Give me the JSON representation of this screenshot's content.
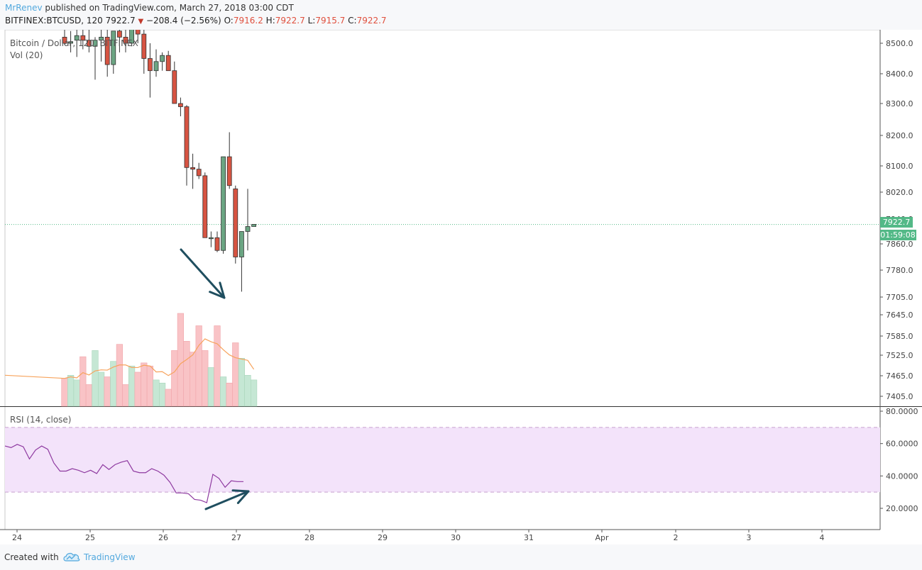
{
  "header": {
    "author": "MrRenev",
    "published": "published on TradingView.com, March 27, 2018 03:00 CDT",
    "symbol": "BITFINEX:BTCUSD, 120",
    "price": "7922.7",
    "change": "−208.4 (−2.56%)",
    "o_label": "O:",
    "o": "7916.2",
    "h_label": "H:",
    "h": "7922.7",
    "l_label": "L:",
    "l": "7915.7",
    "c_label": "C:",
    "c": "7922.7"
  },
  "footer": {
    "created_with": "Created with",
    "brand": "TradingView"
  },
  "colors": {
    "up": "#53b987",
    "down": "#eb4d5c",
    "up_fill": "#6ba583",
    "down_fill": "#d75442",
    "rsi_band": "#f3e3fa",
    "rsi_line": "#8e3aa0",
    "vol_ma": "#f7a35c",
    "price_line": "#53b987",
    "arrow": "#1f4e5f"
  },
  "chart_data": [
    {
      "type": "candlestick",
      "title": "Bitcoin / Dollar, 120, BITFINEX",
      "volume_label": "Vol (20)",
      "current_price": "7922.7",
      "countdown": "01:59:08",
      "y_ticks": [
        "8500.0",
        "8400.0",
        "8300.0",
        "8200.0",
        "8100.0",
        "8020.0",
        "7940.0",
        "7860.0",
        "7780.0",
        "7705.0",
        "7645.0",
        "7585.0",
        "7525.0",
        "7465.0",
        "7405.0"
      ],
      "x_ticks": [
        "24",
        "25",
        "26",
        "27",
        "28",
        "29",
        "30",
        "31",
        "Apr",
        "2",
        "3",
        "4"
      ],
      "ylim": [
        7405,
        8500
      ],
      "candles": [
        {
          "o": 8520,
          "h": 8560,
          "l": 8495,
          "c": 8500
        },
        {
          "o": 8500,
          "h": 8540,
          "l": 8470,
          "c": 8505
        },
        {
          "o": 8510,
          "h": 8545,
          "l": 8455,
          "c": 8525
        },
        {
          "o": 8525,
          "h": 8560,
          "l": 8480,
          "c": 8510
        },
        {
          "o": 8510,
          "h": 8550,
          "l": 8470,
          "c": 8490
        },
        {
          "o": 8490,
          "h": 8520,
          "l": 8380,
          "c": 8510
        },
        {
          "o": 8510,
          "h": 8560,
          "l": 8440,
          "c": 8520
        },
        {
          "o": 8520,
          "h": 8560,
          "l": 8390,
          "c": 8430
        },
        {
          "o": 8430,
          "h": 8540,
          "l": 8400,
          "c": 8540
        },
        {
          "o": 8540,
          "h": 8570,
          "l": 8470,
          "c": 8520
        },
        {
          "o": 8520,
          "h": 8560,
          "l": 8470,
          "c": 8500
        },
        {
          "o": 8500,
          "h": 8560,
          "l": 8490,
          "c": 8550
        },
        {
          "o": 8550,
          "h": 8570,
          "l": 8500,
          "c": 8530
        },
        {
          "o": 8530,
          "h": 8560,
          "l": 8400,
          "c": 8450
        },
        {
          "o": 8450,
          "h": 8500,
          "l": 8320,
          "c": 8410
        },
        {
          "o": 8410,
          "h": 8480,
          "l": 8390,
          "c": 8440
        },
        {
          "o": 8440,
          "h": 8470,
          "l": 8410,
          "c": 8460
        },
        {
          "o": 8460,
          "h": 8475,
          "l": 8420,
          "c": 8410
        },
        {
          "o": 8410,
          "h": 8440,
          "l": 8300,
          "c": 8300
        },
        {
          "o": 8300,
          "h": 8320,
          "l": 8260,
          "c": 8290
        },
        {
          "o": 8290,
          "h": 8295,
          "l": 8040,
          "c": 8095
        },
        {
          "o": 8095,
          "h": 8140,
          "l": 8030,
          "c": 8090
        },
        {
          "o": 8090,
          "h": 8110,
          "l": 8060,
          "c": 8070
        },
        {
          "o": 8070,
          "h": 8080,
          "l": 7880,
          "c": 7880
        },
        {
          "o": 7880,
          "h": 7900,
          "l": 7850,
          "c": 7880
        },
        {
          "o": 7880,
          "h": 7900,
          "l": 7835,
          "c": 7840
        },
        {
          "o": 7840,
          "h": 8130,
          "l": 7830,
          "c": 8130
        },
        {
          "o": 8130,
          "h": 8210,
          "l": 8030,
          "c": 8040
        },
        {
          "o": 8030,
          "h": 8040,
          "l": 7800,
          "c": 7820
        },
        {
          "o": 7820,
          "h": 7900,
          "l": 7720,
          "c": 7900
        },
        {
          "o": 7900,
          "h": 8030,
          "l": 7840,
          "c": 7916
        },
        {
          "o": 7916,
          "h": 7923,
          "l": 7916,
          "c": 7923
        }
      ],
      "volume": [
        18,
        20,
        17,
        32,
        14,
        36,
        22,
        19,
        29,
        40,
        14,
        26,
        22,
        28,
        26,
        17,
        15,
        11,
        36,
        60,
        42,
        35,
        52,
        36,
        25,
        52,
        19,
        15,
        41,
        31,
        20,
        17
      ]
    },
    {
      "type": "line",
      "title": "RSI (14, close)",
      "y_ticks": [
        "80.0000",
        "60.0000",
        "40.0000",
        "20.0000"
      ],
      "ylim": [
        20,
        80
      ],
      "band": [
        30,
        70
      ],
      "values": [
        58.5,
        57.5,
        59.5,
        58,
        50.5,
        56,
        58.5,
        56.5,
        48,
        43,
        43,
        44.5,
        43.5,
        42,
        43.5,
        41.5,
        47,
        44,
        47,
        48.5,
        49.5,
        43,
        42,
        42,
        44.5,
        43,
        40.5,
        36,
        29.5,
        29.5,
        29,
        25.5,
        25,
        23.5,
        41,
        38.5,
        33,
        37,
        36.5,
        36.5
      ]
    }
  ]
}
